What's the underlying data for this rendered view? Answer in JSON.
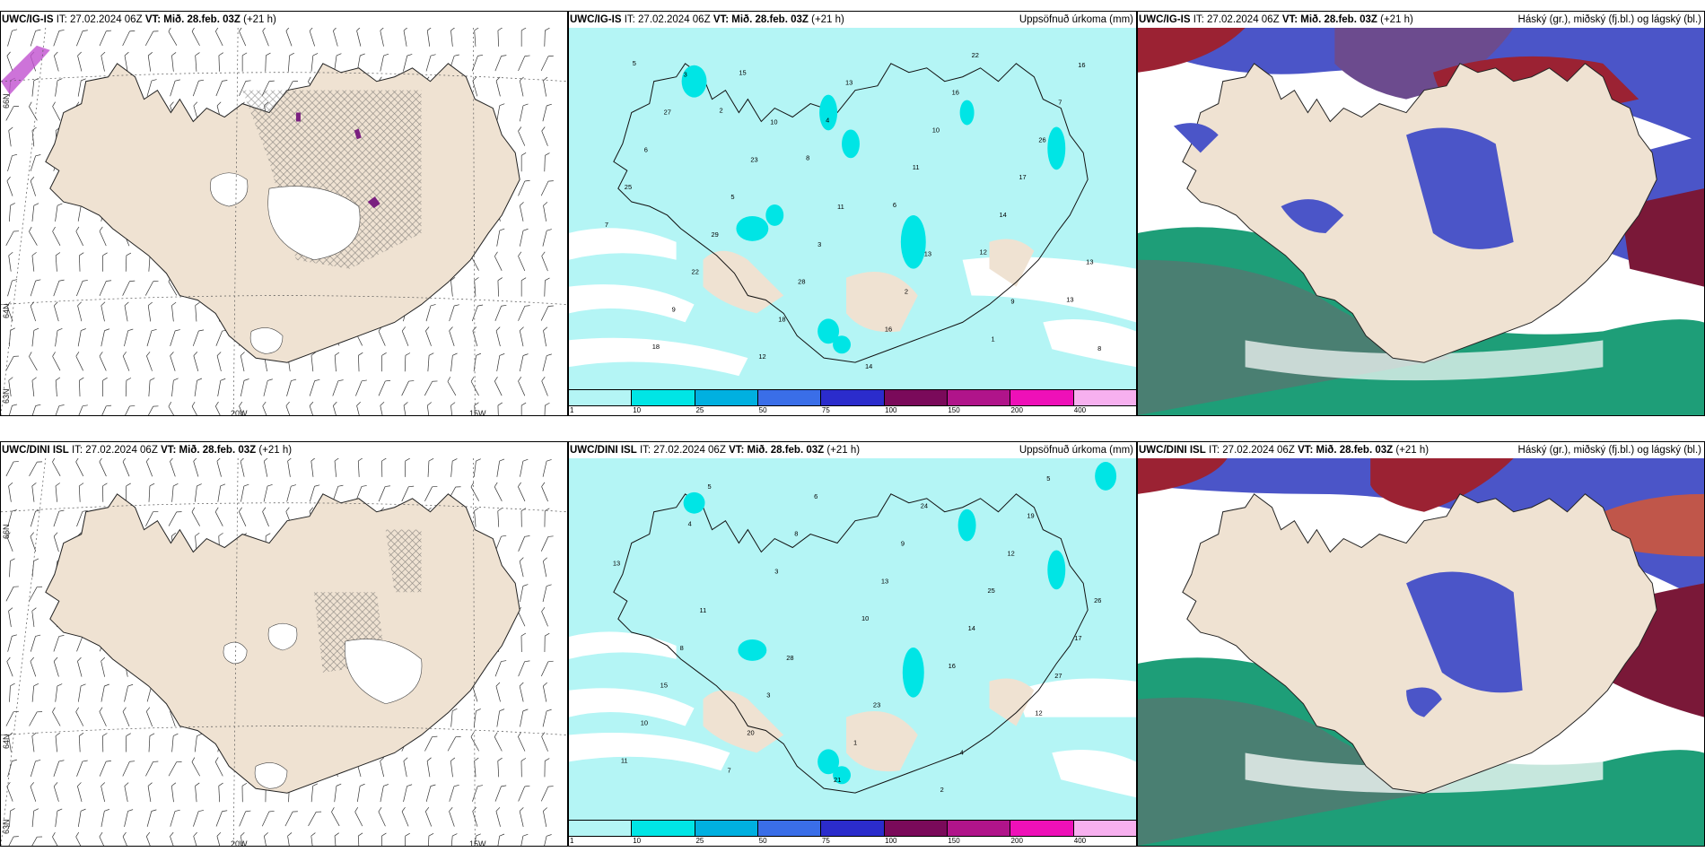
{
  "rows": [
    {
      "model": "UWC/IG-IS",
      "it": "IT: 27.02.2024 06Z",
      "vt_label": "VT:",
      "vt": "Mið. 28.feb. 03Z",
      "lead": "(+21 h)"
    },
    {
      "model": "UWC/DINI ISL",
      "it": "IT: 27.02.2024 06Z",
      "vt_label": "VT:",
      "vt": "Mið. 28.feb. 03Z",
      "lead": "(+21 h)"
    }
  ],
  "panel_titles": {
    "precip": "Uppsöfnuð úrkoma (mm)",
    "clouds": "Háský (gr.), miðský (fj.bl.) og lágský (bl.)"
  },
  "axis_labels": {
    "lat_66": "66N",
    "lat_64": "64N",
    "lat_63": "63N",
    "lon_20": "20W",
    "lon_15": "15W"
  },
  "colorbar": {
    "labels": [
      "1",
      "10",
      "25",
      "50",
      "75",
      "100",
      "150",
      "200",
      "400"
    ],
    "colors": [
      "#b4f5f5",
      "#00e5e5",
      "#00b0e0",
      "#3a6ee8",
      "#2b2ccc",
      "#7a0a5a",
      "#b0148a",
      "#ee10b8",
      "#f7b0ef"
    ]
  },
  "colors": {
    "land": "#efe2d2",
    "precip_light": "#b4f5f5",
    "precip_mid": "#00e5e5",
    "cloud_high": "#9b2233",
    "cloud_mid": "#4b55c8",
    "cloud_low": "#1e9e78"
  },
  "precip_values_top": [
    "5",
    "2",
    "8",
    "6",
    "12",
    "13",
    "18",
    "15",
    "4",
    "11",
    "14",
    "13",
    "9",
    "12",
    "13",
    "10",
    "17",
    "7",
    "22",
    "18",
    "14",
    "16",
    "26",
    "25",
    "29",
    "28",
    "16",
    "22",
    "7",
    "6",
    "5",
    "3",
    "2",
    "1",
    "16",
    "27",
    "23",
    "11",
    "13",
    "9",
    "8",
    "3",
    "10"
  ],
  "precip_values_bottom": [
    "4",
    "3",
    "10",
    "16",
    "12",
    "11",
    "5",
    "8",
    "13",
    "14",
    "27",
    "10",
    "7",
    "6",
    "9",
    "25",
    "17",
    "15",
    "20",
    "21",
    "24",
    "12",
    "26",
    "8",
    "3",
    "1",
    "2",
    "19",
    "13",
    "11",
    "28",
    "23",
    "4",
    "5"
  ]
}
